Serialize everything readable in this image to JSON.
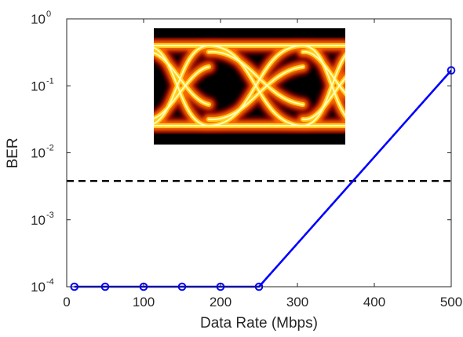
{
  "chart_data": {
    "type": "line",
    "xlabel": "Data Rate (Mbps)",
    "ylabel": "BER",
    "xlim": [
      0,
      500
    ],
    "ylim": [
      0.0001,
      1
    ],
    "yscale": "log",
    "grid": false,
    "x_ticks": [
      "0",
      "100",
      "200",
      "300",
      "400",
      "500"
    ],
    "y_ticks": [
      {
        "value": 0.0001,
        "base": "10",
        "exp": "-4"
      },
      {
        "value": 0.001,
        "base": "10",
        "exp": "-3"
      },
      {
        "value": 0.01,
        "base": "10",
        "exp": "-2"
      },
      {
        "value": 0.1,
        "base": "10",
        "exp": "-1"
      },
      {
        "value": 1,
        "base": "10",
        "exp": "0"
      }
    ],
    "series": [
      {
        "color": "#0000ff",
        "marker": "circle",
        "x": [
          10,
          50,
          100,
          150,
          200,
          250,
          500
        ],
        "y": [
          0.0001,
          0.0001,
          0.0001,
          0.0001,
          0.0001,
          0.0001,
          0.17
        ]
      }
    ],
    "threshold": {
      "y": 0.0038,
      "style": "dashed",
      "color": "#000000"
    },
    "inset": {
      "type": "eye-diagram",
      "colors": [
        "#000000",
        "#8a0000",
        "#ff6a00",
        "#ffd21a",
        "#ffffc8"
      ]
    }
  }
}
